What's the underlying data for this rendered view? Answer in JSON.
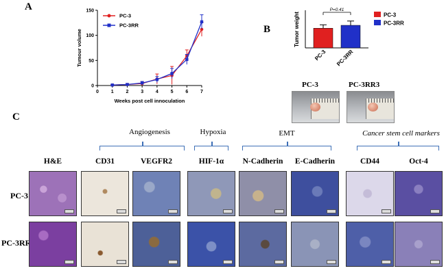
{
  "panel_letters": {
    "a": "A",
    "b": "B",
    "c": "C"
  },
  "chart_data": [
    {
      "type": "line",
      "title": "",
      "xlabel": "Weeks post cell innoculation",
      "ylabel": "Tumour volume",
      "xlim": [
        0,
        7
      ],
      "ylim": [
        0,
        150
      ],
      "xticks": [
        0,
        1,
        2,
        3,
        4,
        5,
        6,
        7
      ],
      "yticks": [
        0,
        50,
        100,
        150
      ],
      "x": [
        1,
        2,
        3,
        4,
        5,
        6,
        7
      ],
      "series": [
        {
          "name": "PC-3",
          "color": "#e02020",
          "marker": "circle",
          "values": [
            1,
            2,
            4,
            13,
            20,
            59,
            112
          ],
          "errors": [
            1,
            2,
            4,
            10,
            18,
            12,
            14
          ]
        },
        {
          "name": "PC-3RR",
          "color": "#2030c8",
          "marker": "square",
          "values": [
            1,
            2,
            5,
            12,
            24,
            52,
            127
          ],
          "errors": [
            1,
            2,
            3,
            6,
            10,
            10,
            14
          ]
        }
      ],
      "legend": "top-left"
    },
    {
      "type": "bar",
      "title": "",
      "xlabel": "",
      "ylabel": "Tumor weight",
      "categories": [
        "PC-3",
        "PC-3RR"
      ],
      "values": [
        1.15,
        1.32
      ],
      "errors": [
        0.2,
        0.25
      ],
      "colors": [
        "#e02020",
        "#2030c8"
      ],
      "ylim": [
        0,
        2
      ],
      "annotation": "P=0.41",
      "legend": "right"
    }
  ],
  "photos": {
    "labels": [
      "PC-3",
      "PC-3RR3"
    ]
  },
  "panel_c": {
    "groups": [
      "Angiogenesis",
      "Hypoxia",
      "EMT",
      "Cancer stem cell markers"
    ],
    "columns": [
      "H&E",
      "CD31",
      "VEGFR2",
      "HIF-1α",
      "N-Cadherin",
      "E-Cadherin",
      "CD44",
      "Oct-4"
    ],
    "rows": [
      "PC-3",
      "PC-3RR"
    ]
  }
}
